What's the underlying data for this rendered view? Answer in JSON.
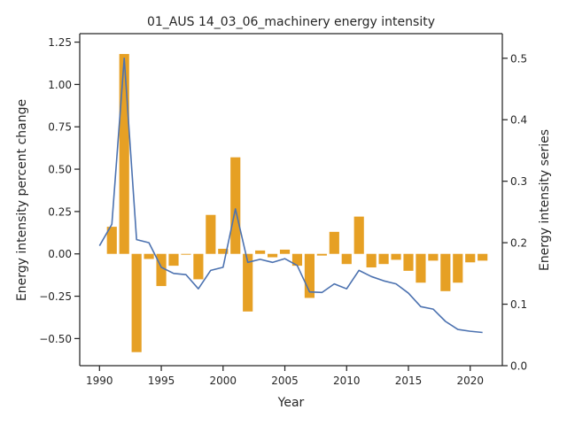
{
  "chart_data": {
    "type": "bar+line",
    "title": "01_AUS 14_03_06_machinery energy intensity",
    "xlabel": "Year",
    "ylabel_left": "Energy intensity percent change",
    "ylabel_right": "Energy intensity series",
    "xlim": [
      1988.4,
      2022.6
    ],
    "ylim_left": [
      -0.66,
      1.3
    ],
    "ylim_right": [
      0,
      0.54
    ],
    "x_ticks": [
      1990,
      1995,
      2000,
      2005,
      2010,
      2015,
      2020
    ],
    "y_ticks_left": [
      -0.5,
      -0.25,
      0.0,
      0.25,
      0.5,
      0.75,
      1.0,
      1.25
    ],
    "y_ticks_right": [
      0.0,
      0.1,
      0.2,
      0.3,
      0.4,
      0.5
    ],
    "grid": false,
    "bar_series": {
      "axis": "left",
      "color": "#e6a024",
      "x": [
        1991,
        1992,
        1993,
        1994,
        1995,
        1996,
        1997,
        1998,
        1999,
        2000,
        2001,
        2002,
        2003,
        2004,
        2005,
        2006,
        2007,
        2008,
        2009,
        2010,
        2011,
        2012,
        2013,
        2014,
        2015,
        2016,
        2017,
        2018,
        2019,
        2020,
        2021
      ],
      "values": [
        0.16,
        1.18,
        -0.58,
        -0.03,
        -0.19,
        -0.07,
        -0.005,
        -0.15,
        0.23,
        0.03,
        0.57,
        -0.34,
        0.02,
        -0.02,
        0.025,
        -0.07,
        -0.26,
        -0.01,
        0.13,
        -0.06,
        0.22,
        -0.08,
        -0.06,
        -0.035,
        -0.1,
        -0.17,
        -0.04,
        -0.22,
        -0.17,
        -0.05,
        -0.04
      ]
    },
    "line_series": {
      "axis": "right",
      "color": "#4c72b0",
      "x": [
        1990,
        1991,
        1992,
        1993,
        1994,
        1995,
        1996,
        1997,
        1998,
        1999,
        2000,
        2001,
        2002,
        2003,
        2004,
        2005,
        2006,
        2007,
        2008,
        2009,
        2010,
        2011,
        2012,
        2013,
        2014,
        2015,
        2016,
        2017,
        2018,
        2019,
        2020,
        2021
      ],
      "values": [
        0.195,
        0.23,
        0.5,
        0.205,
        0.2,
        0.16,
        0.15,
        0.148,
        0.125,
        0.155,
        0.16,
        0.255,
        0.168,
        0.173,
        0.168,
        0.174,
        0.163,
        0.12,
        0.119,
        0.133,
        0.125,
        0.155,
        0.145,
        0.138,
        0.133,
        0.118,
        0.096,
        0.092,
        0.072,
        0.059,
        0.056,
        0.054
      ]
    }
  }
}
